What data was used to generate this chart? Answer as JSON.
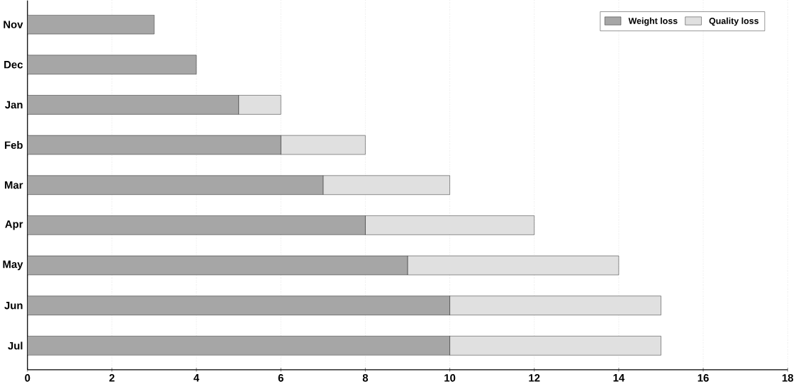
{
  "chart_data": {
    "type": "bar",
    "orientation": "horizontal",
    "stacked": true,
    "categories": [
      "Nov",
      "Dec",
      "Jan",
      "Feb",
      "Mar",
      "Apr",
      "May",
      "Jun",
      "Jul"
    ],
    "series": [
      {
        "name": "Weight loss",
        "color": "#a6a6a6",
        "values": [
          3,
          4,
          5,
          6,
          7,
          8,
          9,
          10,
          10
        ]
      },
      {
        "name": "Quality loss",
        "color": "#e0e0e0",
        "values": [
          0,
          0,
          1,
          2,
          3,
          4,
          5,
          5,
          5
        ]
      }
    ],
    "xlim": [
      0,
      18
    ],
    "xticks": [
      0,
      2,
      4,
      6,
      8,
      10,
      12,
      14,
      16,
      18
    ],
    "grid": "x",
    "legend": "top right"
  }
}
